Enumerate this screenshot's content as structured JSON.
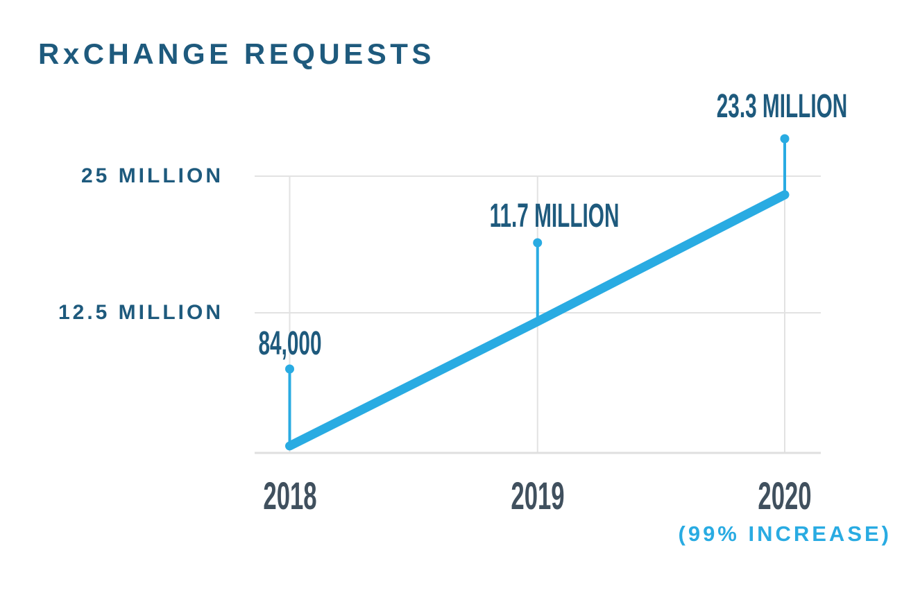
{
  "title": "RxCHANGE REQUESTS",
  "annotation": "(99% INCREASE)",
  "colors": {
    "navy": "#1E5A7D",
    "slate_year": "#40505E",
    "accent_blue": "#29ABE2",
    "gridline": "#E2E2E2",
    "axis": "#DFDFDF"
  },
  "chart_data": {
    "type": "line",
    "title": "RxCHANGE REQUESTS",
    "categories": [
      "2018",
      "2019",
      "2020"
    ],
    "values": [
      84000,
      11700000,
      23300000
    ],
    "point_labels": [
      "84,000",
      "11.7 MILLION",
      "23.3 MILLION"
    ],
    "yticks": [
      {
        "value": 25000000,
        "label": "25 MILLION"
      },
      {
        "value": 12500000,
        "label": "12.5 MILLION"
      }
    ],
    "ylim": [
      0,
      25000000
    ],
    "xlabel": "",
    "ylabel": "",
    "grid": true,
    "legend": false,
    "annotation": "(99% INCREASE)",
    "series_name": "RxChange requests",
    "series_color": "#29ABE2"
  }
}
